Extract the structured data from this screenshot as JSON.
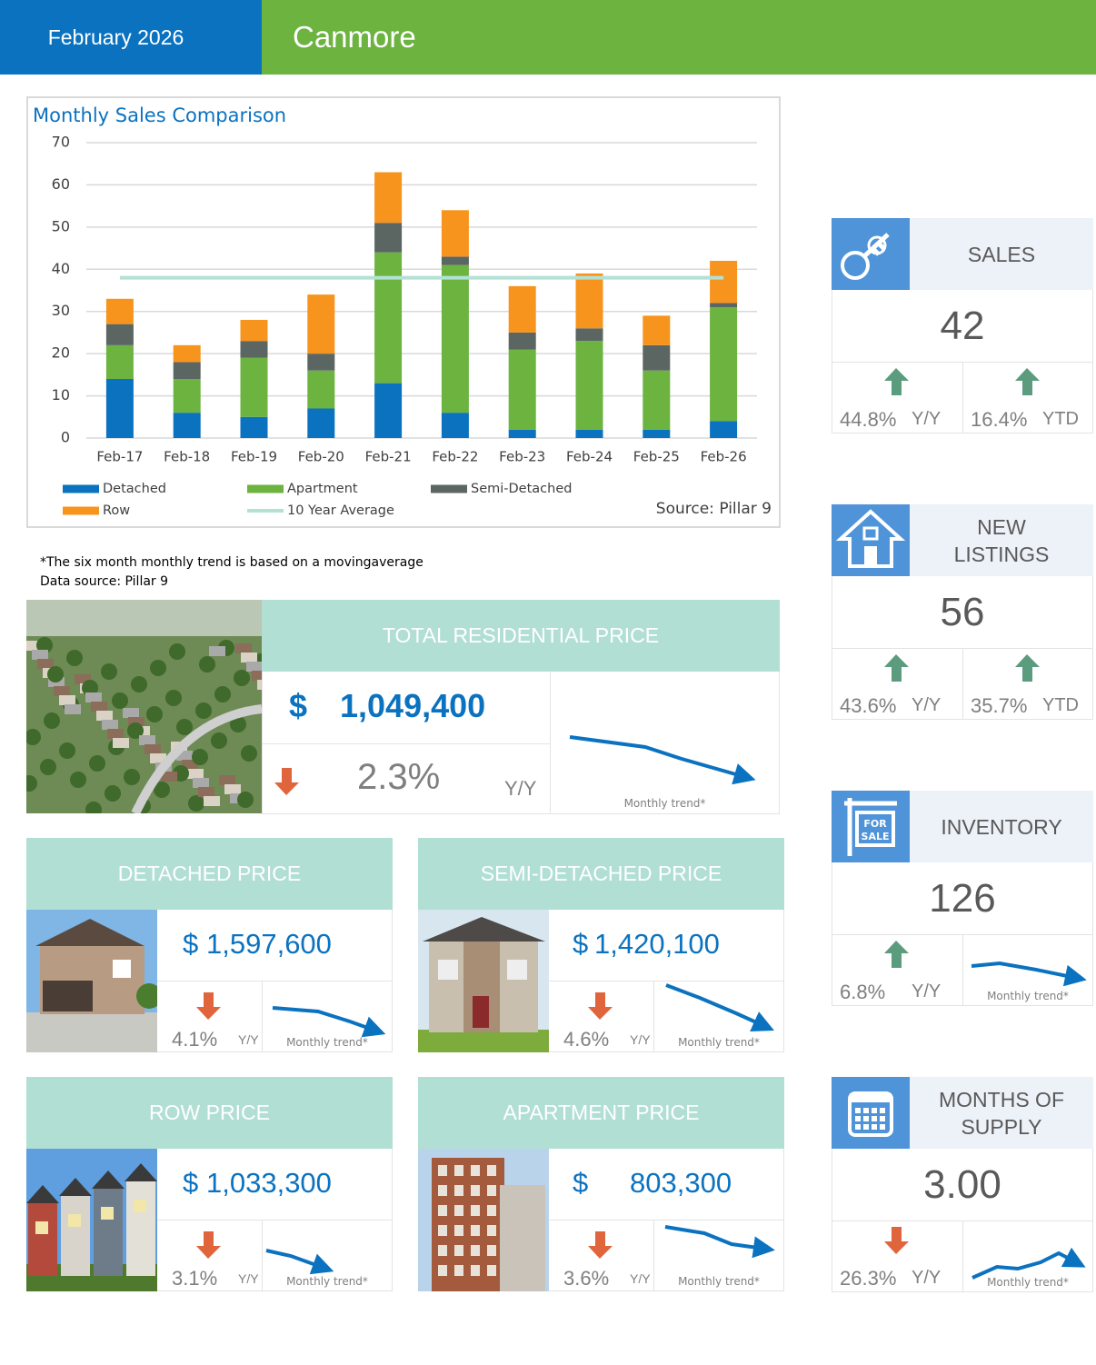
{
  "header": {
    "date": "February 2026",
    "location": "Canmore"
  },
  "chart_data": {
    "type": "bar",
    "stacked": true,
    "title": "Monthly Sales Comparison",
    "source": "Source: Pillar 9",
    "categories": [
      "Feb-17",
      "Feb-18",
      "Feb-19",
      "Feb-20",
      "Feb-21",
      "Feb-22",
      "Feb-23",
      "Feb-24",
      "Feb-25",
      "Feb-26"
    ],
    "series": [
      {
        "name": "Detached",
        "color": "#0b72c0",
        "values": [
          14,
          6,
          5,
          7,
          13,
          6,
          2,
          2,
          2,
          4
        ]
      },
      {
        "name": "Apartment",
        "color": "#6cb33f",
        "values": [
          8,
          8,
          14,
          9,
          31,
          35,
          19,
          21,
          14,
          27
        ]
      },
      {
        "name": "Semi-Detached",
        "color": "#5b6663",
        "values": [
          5,
          4,
          4,
          4,
          7,
          2,
          4,
          3,
          6,
          1
        ]
      },
      {
        "name": "Row",
        "color": "#f7941d",
        "values": [
          6,
          4,
          5,
          14,
          12,
          11,
          11,
          13,
          7,
          10
        ]
      },
      {
        "name": "10 Year Average",
        "color": "#b3e1d6",
        "type": "line",
        "values": [
          38,
          38,
          38,
          38,
          38,
          38,
          38,
          38,
          38,
          38
        ]
      }
    ],
    "ylim": [
      0,
      70
    ],
    "yticks": [
      0,
      10,
      20,
      30,
      40,
      50,
      60,
      70
    ],
    "grid": true
  },
  "notes": [
    "*The six month monthly trend is based on a movingaverage",
    "Data source: Pillar 9"
  ],
  "price_cards": [
    {
      "title": "TOTAL RESIDENTIAL PRICE",
      "currency": "$",
      "amount": "1,049,400",
      "change": "2.3%",
      "change_label": "Y/Y",
      "direction": "down",
      "trend_label": "Monthly trend*"
    },
    {
      "title": "DETACHED PRICE",
      "currency": "$",
      "amount": "1,597,600",
      "change": "4.1%",
      "change_label": "Y/Y",
      "direction": "down",
      "trend_label": "Monthly trend*"
    },
    {
      "title": "SEMI-DETACHED PRICE",
      "currency": "$",
      "amount": "1,420,100",
      "change": "4.6%",
      "change_label": "Y/Y",
      "direction": "down",
      "trend_label": "Monthly trend*"
    },
    {
      "title": "ROW PRICE",
      "currency": "$",
      "amount": "1,033,300",
      "change": "3.1%",
      "change_label": "Y/Y",
      "direction": "down",
      "trend_label": "Monthly trend*"
    },
    {
      "title": "APARTMENT PRICE",
      "currency": "$",
      "amount": "803,300",
      "change": "3.6%",
      "change_label": "Y/Y",
      "direction": "down",
      "trend_label": "Monthly trend*"
    }
  ],
  "stat_cards": [
    {
      "title_lines": [
        "SALES"
      ],
      "value": "42",
      "changes": [
        {
          "value": "44.8%",
          "label": "Y/Y",
          "direction": "up"
        },
        {
          "value": "16.4%",
          "label": "YTD",
          "direction": "up"
        }
      ]
    },
    {
      "title_lines": [
        "NEW",
        "LISTINGS"
      ],
      "value": "56",
      "changes": [
        {
          "value": "43.6%",
          "label": "Y/Y",
          "direction": "up"
        },
        {
          "value": "35.7%",
          "label": "YTD",
          "direction": "up"
        }
      ]
    },
    {
      "title_lines": [
        "INVENTORY"
      ],
      "value": "126",
      "changes": [
        {
          "value": "6.8%",
          "label": "Y/Y",
          "direction": "up"
        }
      ],
      "trend_label": "Monthly trend*"
    },
    {
      "title_lines": [
        "MONTHS OF",
        "SUPPLY"
      ],
      "value": "3.00",
      "changes": [
        {
          "value": "26.3%",
          "label": "Y/Y",
          "direction": "down"
        }
      ],
      "trend_label": "Monthly trend*"
    }
  ]
}
